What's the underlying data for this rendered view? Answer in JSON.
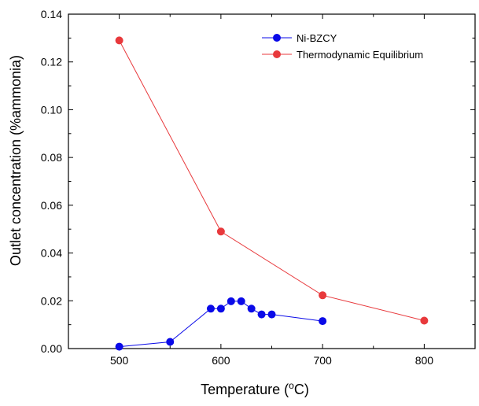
{
  "chart_data": {
    "type": "line",
    "xlabel": "Temperature (",
    "xlabel_degree": "o",
    "xlabel_unit": "C)",
    "ylabel": "Outlet concentration (%ammonia)",
    "xlim": [
      450,
      850
    ],
    "ylim": [
      0,
      0.14
    ],
    "x_ticks": [
      "500",
      "600",
      "700",
      "800"
    ],
    "y_ticks": [
      "0.00",
      "0.02",
      "0.04",
      "0.06",
      "0.08",
      "0.10",
      "0.12",
      "0.14"
    ],
    "legend_position": "top-right",
    "series": [
      {
        "name": "Ni-BZCY",
        "color": "#0a0ae8",
        "x": [
          500,
          550,
          590,
          600,
          610,
          620,
          630,
          640,
          650,
          700
        ],
        "y": [
          0.0008,
          0.0028,
          0.0167,
          0.0167,
          0.0198,
          0.0198,
          0.0167,
          0.0143,
          0.0143,
          0.0115
        ]
      },
      {
        "name": "Thermodynamic Equilibrium",
        "color": "#e8393c",
        "x": [
          500,
          600,
          700,
          800
        ],
        "y": [
          0.129,
          0.049,
          0.0223,
          0.0117
        ]
      }
    ]
  }
}
